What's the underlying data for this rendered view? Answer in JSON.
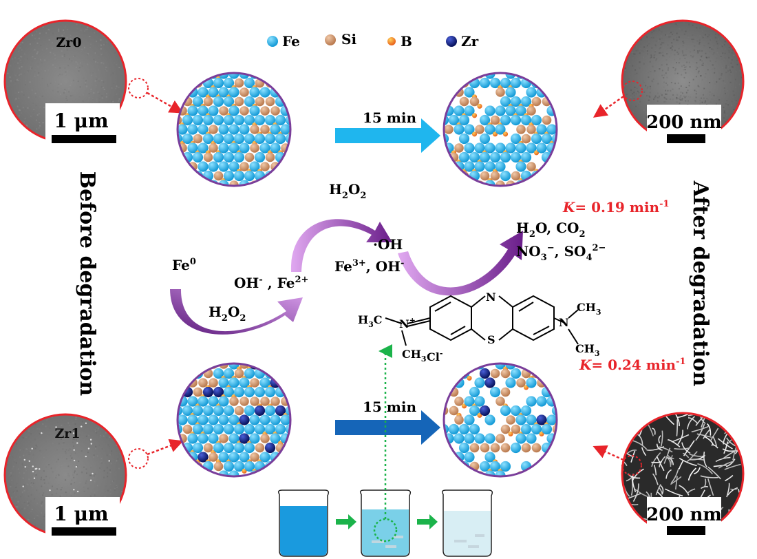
{
  "legend": [
    {
      "label": "Fe",
      "color": "#1fa9df"
    },
    {
      "label": "Si",
      "color": "#c98e66"
    },
    {
      "label": "B",
      "color": "#f08a1e"
    },
    {
      "label": "Zr",
      "color": "#0b1a78"
    }
  ],
  "sem": {
    "zr0": {
      "label": "Zr0",
      "scale": "1 μm"
    },
    "zr1": {
      "label": "Zr1",
      "scale": "1 μm"
    },
    "after_top": {
      "scale": "200 nm"
    },
    "after_bottom": {
      "scale": "200 nm"
    }
  },
  "side_labels": {
    "left": "Before degradation",
    "right": "After degradation"
  },
  "arrows": {
    "top_time": "15 min",
    "bottom_time": "15 min"
  },
  "rates": {
    "top": {
      "symbol": "K",
      "text": "= 0.19 min",
      "sup": "-1"
    },
    "bottom": {
      "symbol": "K",
      "text": "= 0.24 min",
      "sup": "-1"
    }
  },
  "reaction": {
    "fe0": "Fe",
    "fe0_sup": "0",
    "h2o2_lower": "H",
    "oh_fe2": "OH",
    "h2o2_upper": "H",
    "oh_radical": "·OH",
    "fe3_oh": "Fe",
    "products_1": "H",
    "products_2": "NO"
  },
  "molecule": {
    "n_top": "N",
    "s": "S",
    "left_group_h3c": "H",
    "left_n": "N",
    "left_ch3": "CH",
    "right_n": "N",
    "right_ch3_top": "CH",
    "right_ch3_bottom": "CH",
    "counter_ion": "Cl"
  },
  "colors": {
    "ring": "#e8242a",
    "sphere_border": "#7a3d9a",
    "arrow_light": "#19b3ea",
    "arrow_dark": "#1565b8",
    "rate": "#e8242a",
    "beaker_flow": "#1bb34a"
  }
}
